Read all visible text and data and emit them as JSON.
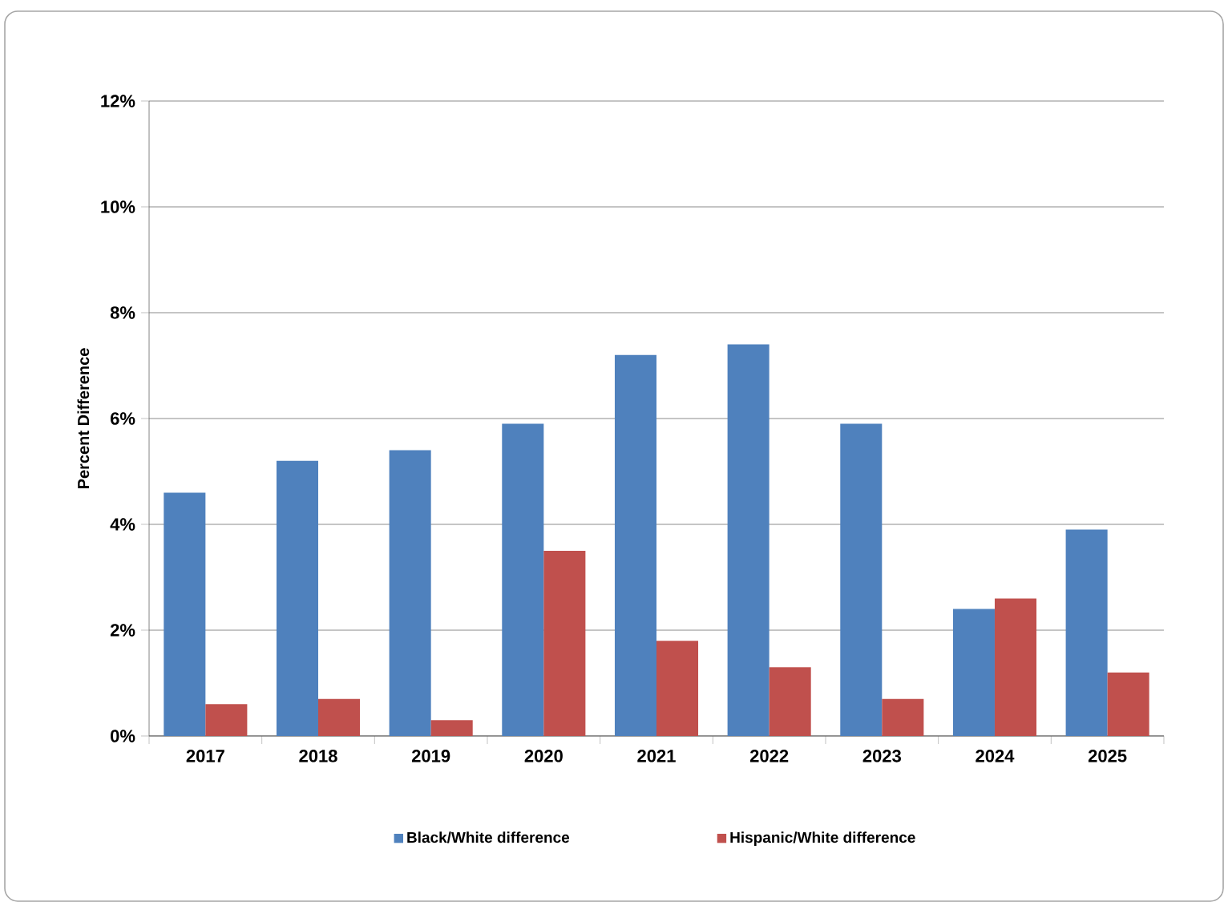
{
  "chart_data": {
    "type": "bar",
    "ylabel": "Percent Difference",
    "categories": [
      "2017",
      "2018",
      "2019",
      "2020",
      "2021",
      "2022",
      "2023",
      "2024",
      "2025"
    ],
    "series": [
      {
        "name": "Black/White difference",
        "color": "#4f81bd",
        "values": [
          4.6,
          5.2,
          5.4,
          5.9,
          7.2,
          7.4,
          5.9,
          2.4,
          3.9
        ]
      },
      {
        "name": "Hispanic/White difference",
        "color": "#c0504d",
        "values": [
          0.6,
          0.7,
          0.3,
          3.5,
          1.8,
          1.3,
          0.7,
          2.6,
          1.2
        ]
      }
    ],
    "ylim": [
      0,
      12
    ],
    "yticks": [
      {
        "value": 0,
        "label": "0%"
      },
      {
        "value": 2,
        "label": "2%"
      },
      {
        "value": 4,
        "label": "4%"
      },
      {
        "value": 6,
        "label": "6%"
      },
      {
        "value": 8,
        "label": "8%"
      },
      {
        "value": 10,
        "label": "10%"
      },
      {
        "value": 12,
        "label": "12%"
      }
    ],
    "grid": "y",
    "legend": "bottom"
  }
}
